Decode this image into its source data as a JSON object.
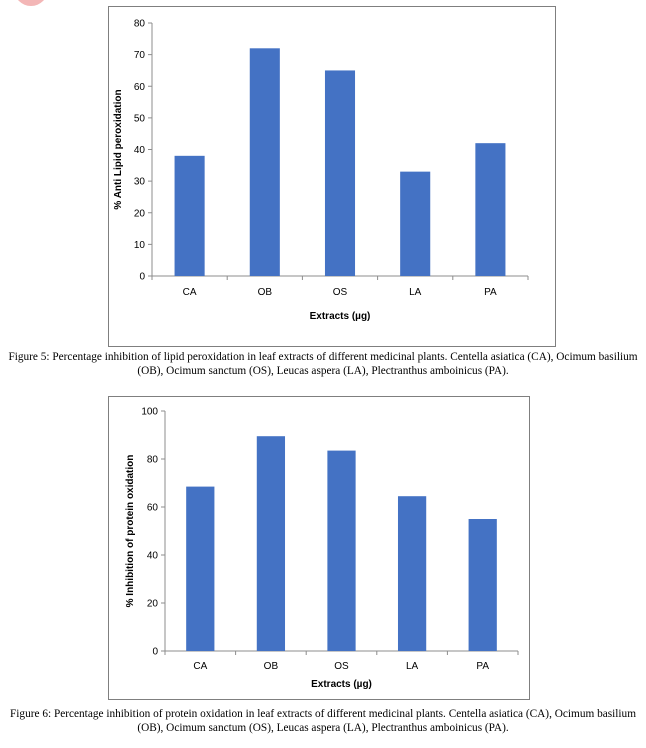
{
  "chart_data": [
    {
      "type": "bar",
      "categories": [
        "CA",
        "OB",
        "OS",
        "LA",
        "PA"
      ],
      "values": [
        38,
        72,
        65,
        33,
        42
      ],
      "xlabel": "Extracts (µg)",
      "ylabel": "% Anti Lipid peroxidation",
      "ylim": [
        0,
        80
      ],
      "yticks": [
        0,
        10,
        20,
        30,
        40,
        50,
        60,
        70,
        80
      ],
      "bar_color": "#4472c4",
      "grid": false,
      "caption": "Figure 5: Percentage inhibition of lipid peroxidation  in leaf extracts of different medicinal plants. Centella asiatica (CA), Ocimum basilium (OB), Ocimum sanctum (OS), Leucas aspera (LA), Plectranthus amboinicus (PA)."
    },
    {
      "type": "bar",
      "categories": [
        "CA",
        "OB",
        "OS",
        "LA",
        "PA"
      ],
      "values": [
        68.5,
        89.5,
        83.5,
        64.5,
        55
      ],
      "xlabel": "Extracts (µg)",
      "ylabel": "% Inhibition of protein oxidation",
      "ylim": [
        0,
        100
      ],
      "yticks": [
        0,
        20,
        40,
        60,
        80,
        100
      ],
      "bar_color": "#4472c4",
      "grid": false,
      "caption": "Figure 6: Percentage inhibition of protein oxidation  in leaf extracts of different medicinal plants. Centella asiatica (CA), Ocimum basilium (OB), Ocimum sanctum (OS), Leucas aspera (LA), Plectranthus amboinicus (PA)."
    }
  ]
}
